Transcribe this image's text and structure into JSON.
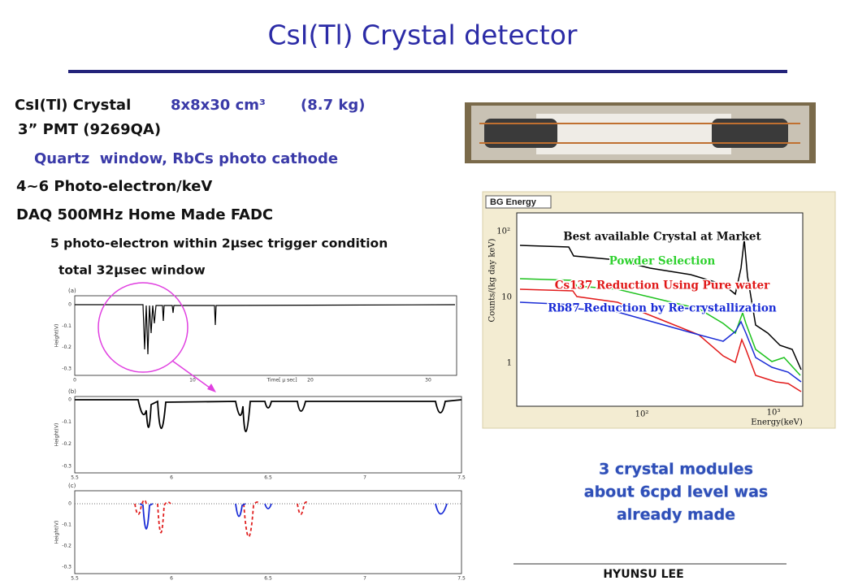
{
  "title": "CsI(Tl) Crystal detector",
  "specs": {
    "crystal_label": "CsI(Tl) Crystal",
    "crystal_size": "8x8x30 cm³",
    "crystal_mass": "(8.7 kg)",
    "pmt": "3” PMT (9269QA)",
    "pmt_detail": "Quartz  window, RbCs photo cathode",
    "light_yield": "4~6 Photo-electron/keV",
    "daq": "DAQ 500MHz Home Made FADC",
    "trigger": "5 photo-electron within 2μsec trigger condition",
    "window": "total 32μsec window"
  },
  "waveforms": [
    {
      "label": "(a)",
      "y_label": "Height(V)",
      "x_label": "Time[ μ sec]",
      "yticks": [
        "0",
        "-0.1",
        "-0.2",
        "-0.3"
      ],
      "xticks": [
        "0",
        "10",
        "20",
        "30"
      ]
    },
    {
      "label": "(b)",
      "y_label": "Height(V)",
      "yticks": [
        "0",
        "-0.1",
        "-0.2",
        "-0.3"
      ],
      "xticks": [
        "5.5",
        "6",
        "6.5",
        "7",
        "7.5"
      ]
    },
    {
      "label": "(c)",
      "y_label": "Height(V)",
      "yticks": [
        "0",
        "-0.1",
        "-0.2",
        "-0.3"
      ],
      "xticks": [
        "5.5",
        "6",
        "6.5",
        "7",
        "7.5"
      ]
    }
  ],
  "spectrum": {
    "title": "BG Energy",
    "y_label": "Counts/(kg day keV)",
    "x_label": "Energy(keV)",
    "yticks": [
      "10²",
      "10",
      "1"
    ],
    "xticks": [
      "10²",
      "10³"
    ],
    "legend": [
      "Best available Crystal at Market",
      "Powder Selection",
      "Cs137 Reduction Using Pure water",
      "Rb87 Reduction by Re-crystallization"
    ]
  },
  "conclusion": [
    "3 crystal modules",
    "about 6cpd level was",
    "already made"
  ],
  "author": "HYUNSU LEE"
}
